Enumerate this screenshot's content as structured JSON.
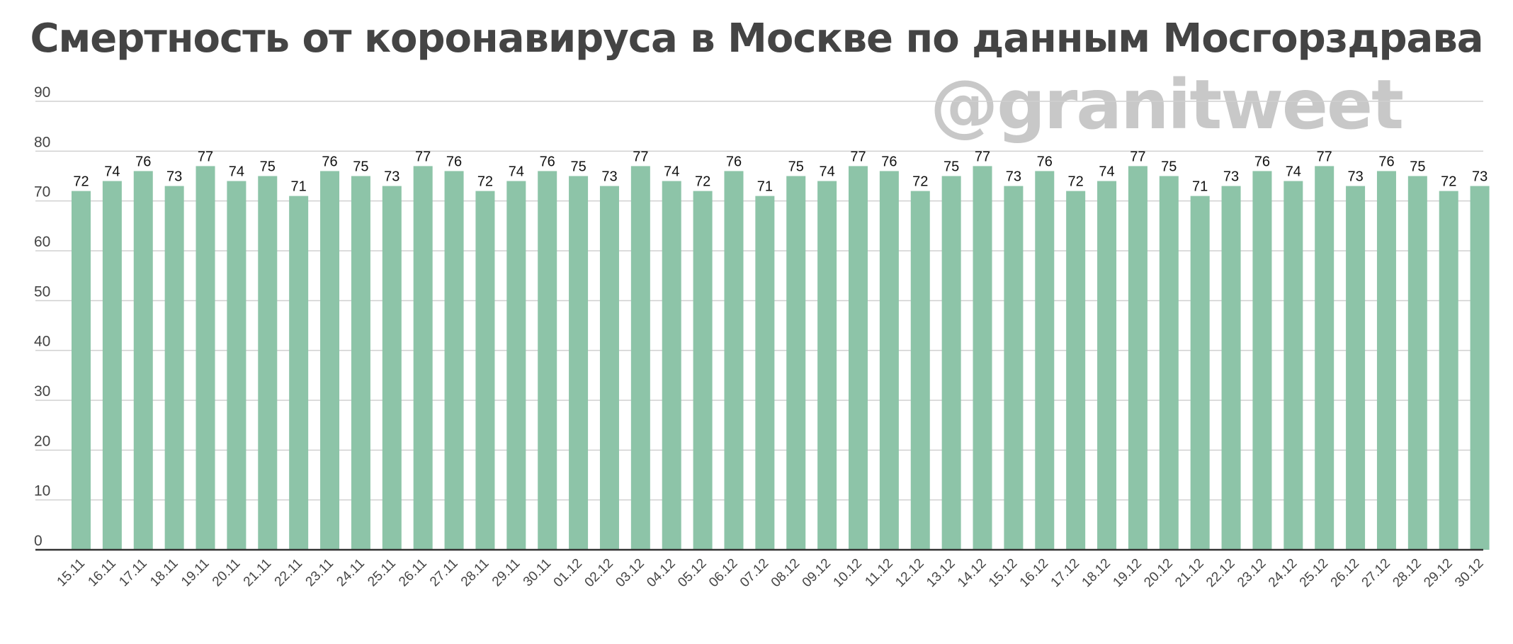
{
  "chart_data": {
    "type": "bar",
    "title": "Смертность от коронавируса в Москве по данным Мосгорздрава",
    "watermark": "@granitweet",
    "xlabel": "",
    "ylabel": "",
    "ylim": [
      0,
      90
    ],
    "yticks": [
      0,
      10,
      20,
      30,
      40,
      50,
      60,
      70,
      80,
      90
    ],
    "grid": true,
    "legend": "none",
    "bar_color": "#8dc4a8",
    "categories": [
      "15.11",
      "16.11",
      "17.11",
      "18.11",
      "19.11",
      "20.11",
      "21.11",
      "22.11",
      "23.11",
      "24.11",
      "25.11",
      "26.11",
      "27.11",
      "28.11",
      "29.11",
      "30.11",
      "01.12",
      "02.12",
      "03.12",
      "04.12",
      "05.12",
      "06.12",
      "07.12",
      "08.12",
      "09.12",
      "10.12",
      "11.12",
      "12.12",
      "13.12",
      "14.12",
      "15.12",
      "16.12",
      "17.12",
      "18.12",
      "19.12",
      "20.12",
      "21.12",
      "22.12",
      "23.12",
      "24.12",
      "25.12",
      "26.12",
      "27.12",
      "28.12",
      "29.12",
      "30.12"
    ],
    "values": [
      72,
      74,
      76,
      73,
      77,
      74,
      75,
      71,
      76,
      75,
      73,
      77,
      76,
      72,
      74,
      76,
      75,
      73,
      77,
      74,
      72,
      76,
      71,
      75,
      74,
      77,
      76,
      72,
      75,
      77,
      73,
      76,
      72,
      74,
      77,
      75,
      71,
      73,
      76,
      74,
      77,
      73,
      76,
      75,
      72,
      73
    ]
  }
}
